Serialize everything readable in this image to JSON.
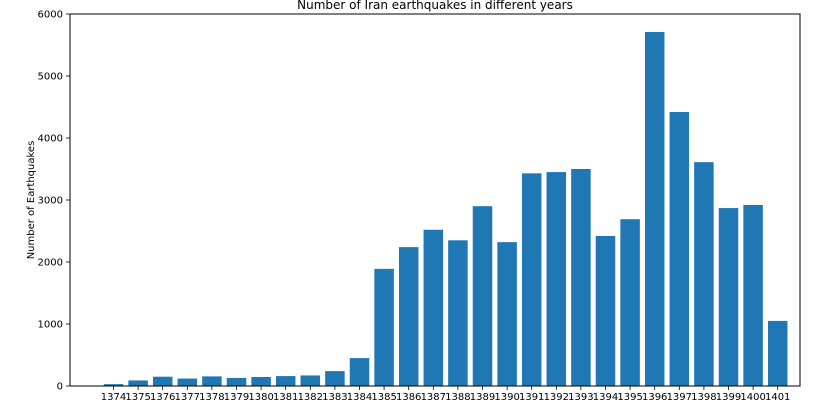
{
  "chart_data": {
    "type": "bar",
    "title": "Number of Iran earthquakes in different years",
    "xlabel": "",
    "ylabel": "Number of Earthquakes",
    "categories": [
      "1374",
      "1375",
      "1376",
      "1377",
      "1378",
      "1379",
      "1380",
      "1381",
      "1382",
      "1383",
      "1384",
      "1385",
      "1386",
      "1387",
      "1388",
      "1389",
      "1390",
      "1391",
      "1392",
      "1393",
      "1394",
      "1395",
      "1396",
      "1397",
      "1398",
      "1399",
      "1400",
      "1401"
    ],
    "values": [
      30,
      90,
      150,
      120,
      155,
      130,
      145,
      160,
      170,
      240,
      450,
      1890,
      2240,
      2520,
      2350,
      2900,
      2320,
      3430,
      3450,
      3500,
      2420,
      2690,
      5710,
      4420,
      3610,
      2870,
      2920,
      1050
    ],
    "ylim": [
      0,
      6000
    ],
    "yticks": [
      0,
      1000,
      2000,
      3000,
      4000,
      5000,
      6000
    ],
    "bar_color": "#1f77b4",
    "grid": false
  }
}
